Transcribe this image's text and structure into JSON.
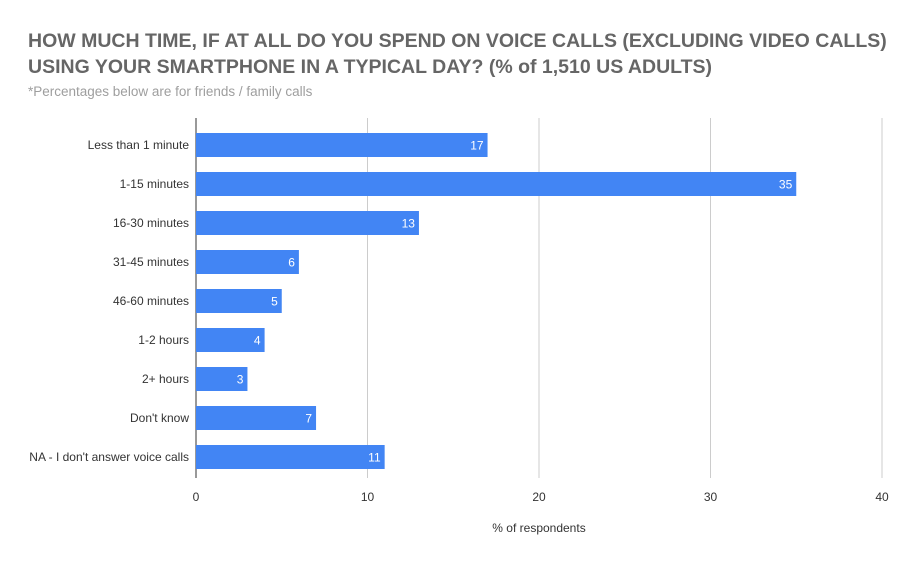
{
  "chart_data": {
    "type": "bar",
    "orientation": "horizontal",
    "title": "HOW MUCH TIME, IF AT ALL DO YOU SPEND ON VOICE CALLS (EXCLUDING VIDEO CALLS) USING YOUR SMARTPHONE IN A TYPICAL DAY? (% of 1,510 US ADULTS)",
    "subtitle": "*Percentages below are for friends / family calls",
    "categories": [
      "Less than 1 minute",
      "1-15 minutes",
      "16-30 minutes",
      "31-45 minutes",
      "46-60 minutes",
      "1-2 hours",
      "2+ hours",
      "Don't know",
      "NA - I don't answer voice calls"
    ],
    "values": [
      17,
      35,
      13,
      6,
      5,
      4,
      3,
      7,
      11
    ],
    "xlabel": "% of respondents",
    "ylabel": "",
    "xlim": [
      0,
      40
    ],
    "xticks": [
      0,
      10,
      20,
      30,
      40
    ],
    "grid": true,
    "legend": "none",
    "bar_color": "#4285f4",
    "grid_color": "#cccccc"
  }
}
